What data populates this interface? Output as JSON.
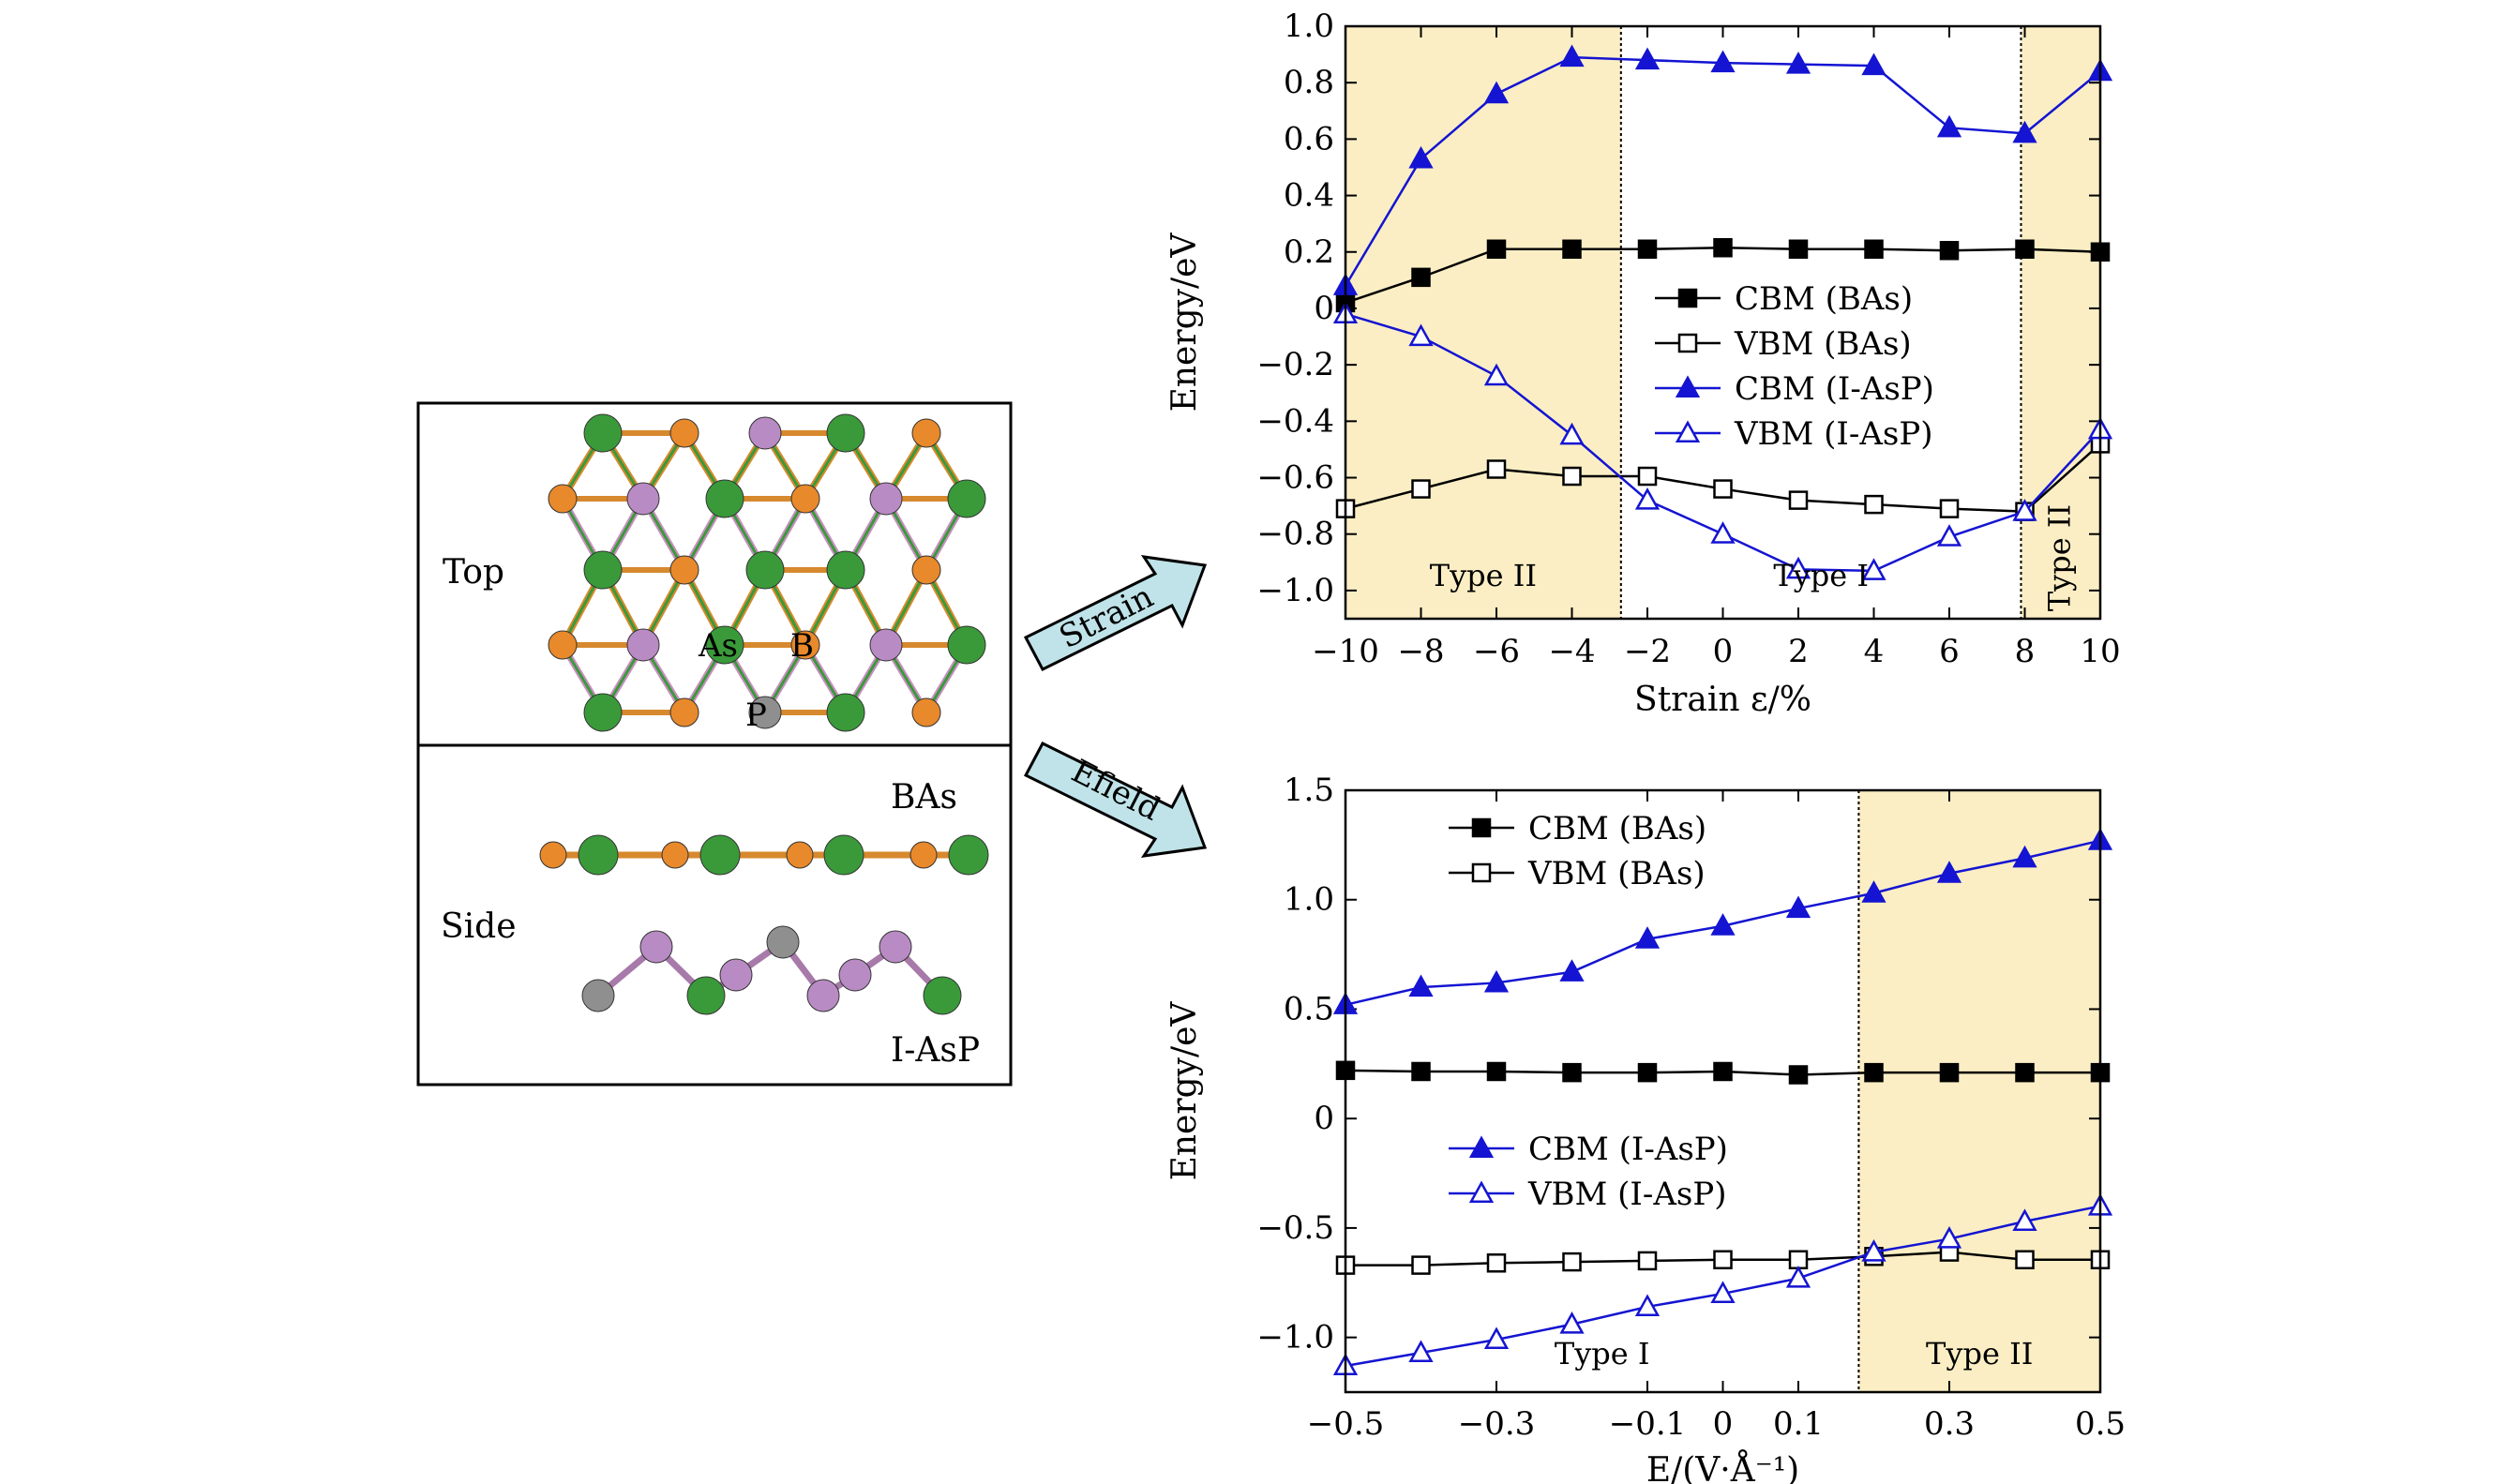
{
  "structure_panel": {
    "top_label": "Top",
    "side_label": "Side",
    "atom_labels": {
      "as": "As",
      "b": "B",
      "p": "P"
    },
    "layer_labels": {
      "bas": "BAs",
      "iasp": "I-AsP"
    },
    "atom_colors": {
      "B": "#e8892b",
      "As": "#3a9a3a",
      "P": "#b98bc4",
      "I": "#8f8f8f"
    }
  },
  "arrows": {
    "strain": "Strain",
    "efield": "Efield",
    "color": "#bfe3e8"
  },
  "chart_data": [
    {
      "type": "line",
      "xlabel": "Strain ε/%",
      "ylabel": "Energy/eV",
      "xlim": [
        -10,
        10
      ],
      "ylim": [
        -1.1,
        1.0
      ],
      "xticks": [
        -10,
        -8,
        -6,
        -4,
        -2,
        0,
        2,
        4,
        6,
        8,
        10
      ],
      "xtick_labels": [
        "−10",
        "−8",
        "−6",
        "−4",
        "−2",
        "0",
        "2",
        "4",
        "6",
        "8",
        "10"
      ],
      "yticks": [
        -1.0,
        -0.8,
        -0.6,
        -0.4,
        -0.2,
        0,
        0.2,
        0.4,
        0.6,
        0.8,
        1.0
      ],
      "ytick_labels": [
        "−1.0",
        "−0.8",
        "−0.6",
        "−0.4",
        "−0.2",
        "0",
        "0.2",
        "0.4",
        "0.6",
        "0.8",
        "1.0"
      ],
      "x": [
        -10,
        -8,
        -6,
        -4,
        -2,
        0,
        2,
        4,
        6,
        8,
        10
      ],
      "series": [
        {
          "name": "CBM (BAs)",
          "marker": "square-filled",
          "color": "#000000",
          "values": [
            0.02,
            0.11,
            0.21,
            0.21,
            0.21,
            0.215,
            0.21,
            0.21,
            0.205,
            0.21,
            0.2
          ]
        },
        {
          "name": "VBM (BAs)",
          "marker": "square-open",
          "color": "#000000",
          "values": [
            -0.71,
            -0.64,
            -0.57,
            -0.595,
            -0.595,
            -0.64,
            -0.68,
            -0.695,
            -0.71,
            -0.72,
            -0.48
          ]
        },
        {
          "name": "CBM (I-AsP)",
          "marker": "triangle-filled",
          "color": "#1414d2",
          "values": [
            0.08,
            0.53,
            0.76,
            0.89,
            0.88,
            0.87,
            0.865,
            0.86,
            0.64,
            0.62,
            0.84
          ]
        },
        {
          "name": "VBM (I-AsP)",
          "marker": "triangle-open",
          "color": "#1414d2",
          "values": [
            -0.02,
            -0.1,
            -0.24,
            -0.45,
            -0.68,
            -0.8,
            -0.925,
            -0.93,
            -0.81,
            -0.72,
            -0.43
          ]
        }
      ],
      "regions": [
        {
          "from": -10,
          "to": -2.7,
          "label": "Type II",
          "shaded": true
        },
        {
          "from": -2.7,
          "to": 7.9,
          "label": "Type I",
          "shaded": false
        },
        {
          "from": 7.9,
          "to": 10,
          "label": "Type II",
          "shaded": true,
          "vertical_label": true
        }
      ],
      "region_color": "#fbeec4",
      "legend": "center-right"
    },
    {
      "type": "line",
      "xlabel": "E/(V·Å⁻¹)",
      "ylabel": "Energy/eV",
      "xlim": [
        -0.5,
        0.5
      ],
      "ylim": [
        -1.25,
        1.5
      ],
      "xticks": [
        -0.5,
        -0.3,
        -0.1,
        0,
        0.1,
        0.3,
        0.5
      ],
      "xtick_labels": [
        "−0.5",
        "−0.3",
        "−0.1",
        "0",
        "0.1",
        "0.3",
        "0.5"
      ],
      "yticks": [
        -1.0,
        -0.5,
        0,
        0.5,
        1.0,
        1.5
      ],
      "ytick_labels": [
        "−1.0",
        "−0.5",
        "0",
        "0.5",
        "1.0",
        "1.5"
      ],
      "x": [
        -0.5,
        -0.4,
        -0.3,
        -0.2,
        -0.1,
        0,
        0.1,
        0.2,
        0.3,
        0.4,
        0.5
      ],
      "series": [
        {
          "name": "CBM (BAs)",
          "marker": "square-filled",
          "color": "#000000",
          "values": [
            0.22,
            0.215,
            0.215,
            0.21,
            0.21,
            0.215,
            0.2,
            0.21,
            0.21,
            0.21,
            0.21
          ]
        },
        {
          "name": "VBM (BAs)",
          "marker": "square-open",
          "color": "#000000",
          "values": [
            -0.67,
            -0.67,
            -0.66,
            -0.655,
            -0.65,
            -0.645,
            -0.645,
            -0.63,
            -0.61,
            -0.645,
            -0.645
          ]
        },
        {
          "name": "CBM (I-AsP)",
          "marker": "triangle-filled",
          "color": "#1414d2",
          "values": [
            0.52,
            0.6,
            0.62,
            0.67,
            0.82,
            0.88,
            0.96,
            1.03,
            1.12,
            1.19,
            1.27
          ]
        },
        {
          "name": "VBM (I-AsP)",
          "marker": "triangle-open",
          "color": "#1414d2",
          "values": [
            -1.13,
            -1.07,
            -1.01,
            -0.94,
            -0.86,
            -0.8,
            -0.73,
            -0.61,
            -0.55,
            -0.47,
            -0.4
          ]
        }
      ],
      "regions": [
        {
          "from": -0.5,
          "to": 0.18,
          "label": "Type I",
          "shaded": false
        },
        {
          "from": 0.18,
          "to": 0.5,
          "label": "Type II",
          "shaded": true
        }
      ],
      "region_color": "#fbeec4",
      "legend": "upper-left and center-left"
    }
  ]
}
